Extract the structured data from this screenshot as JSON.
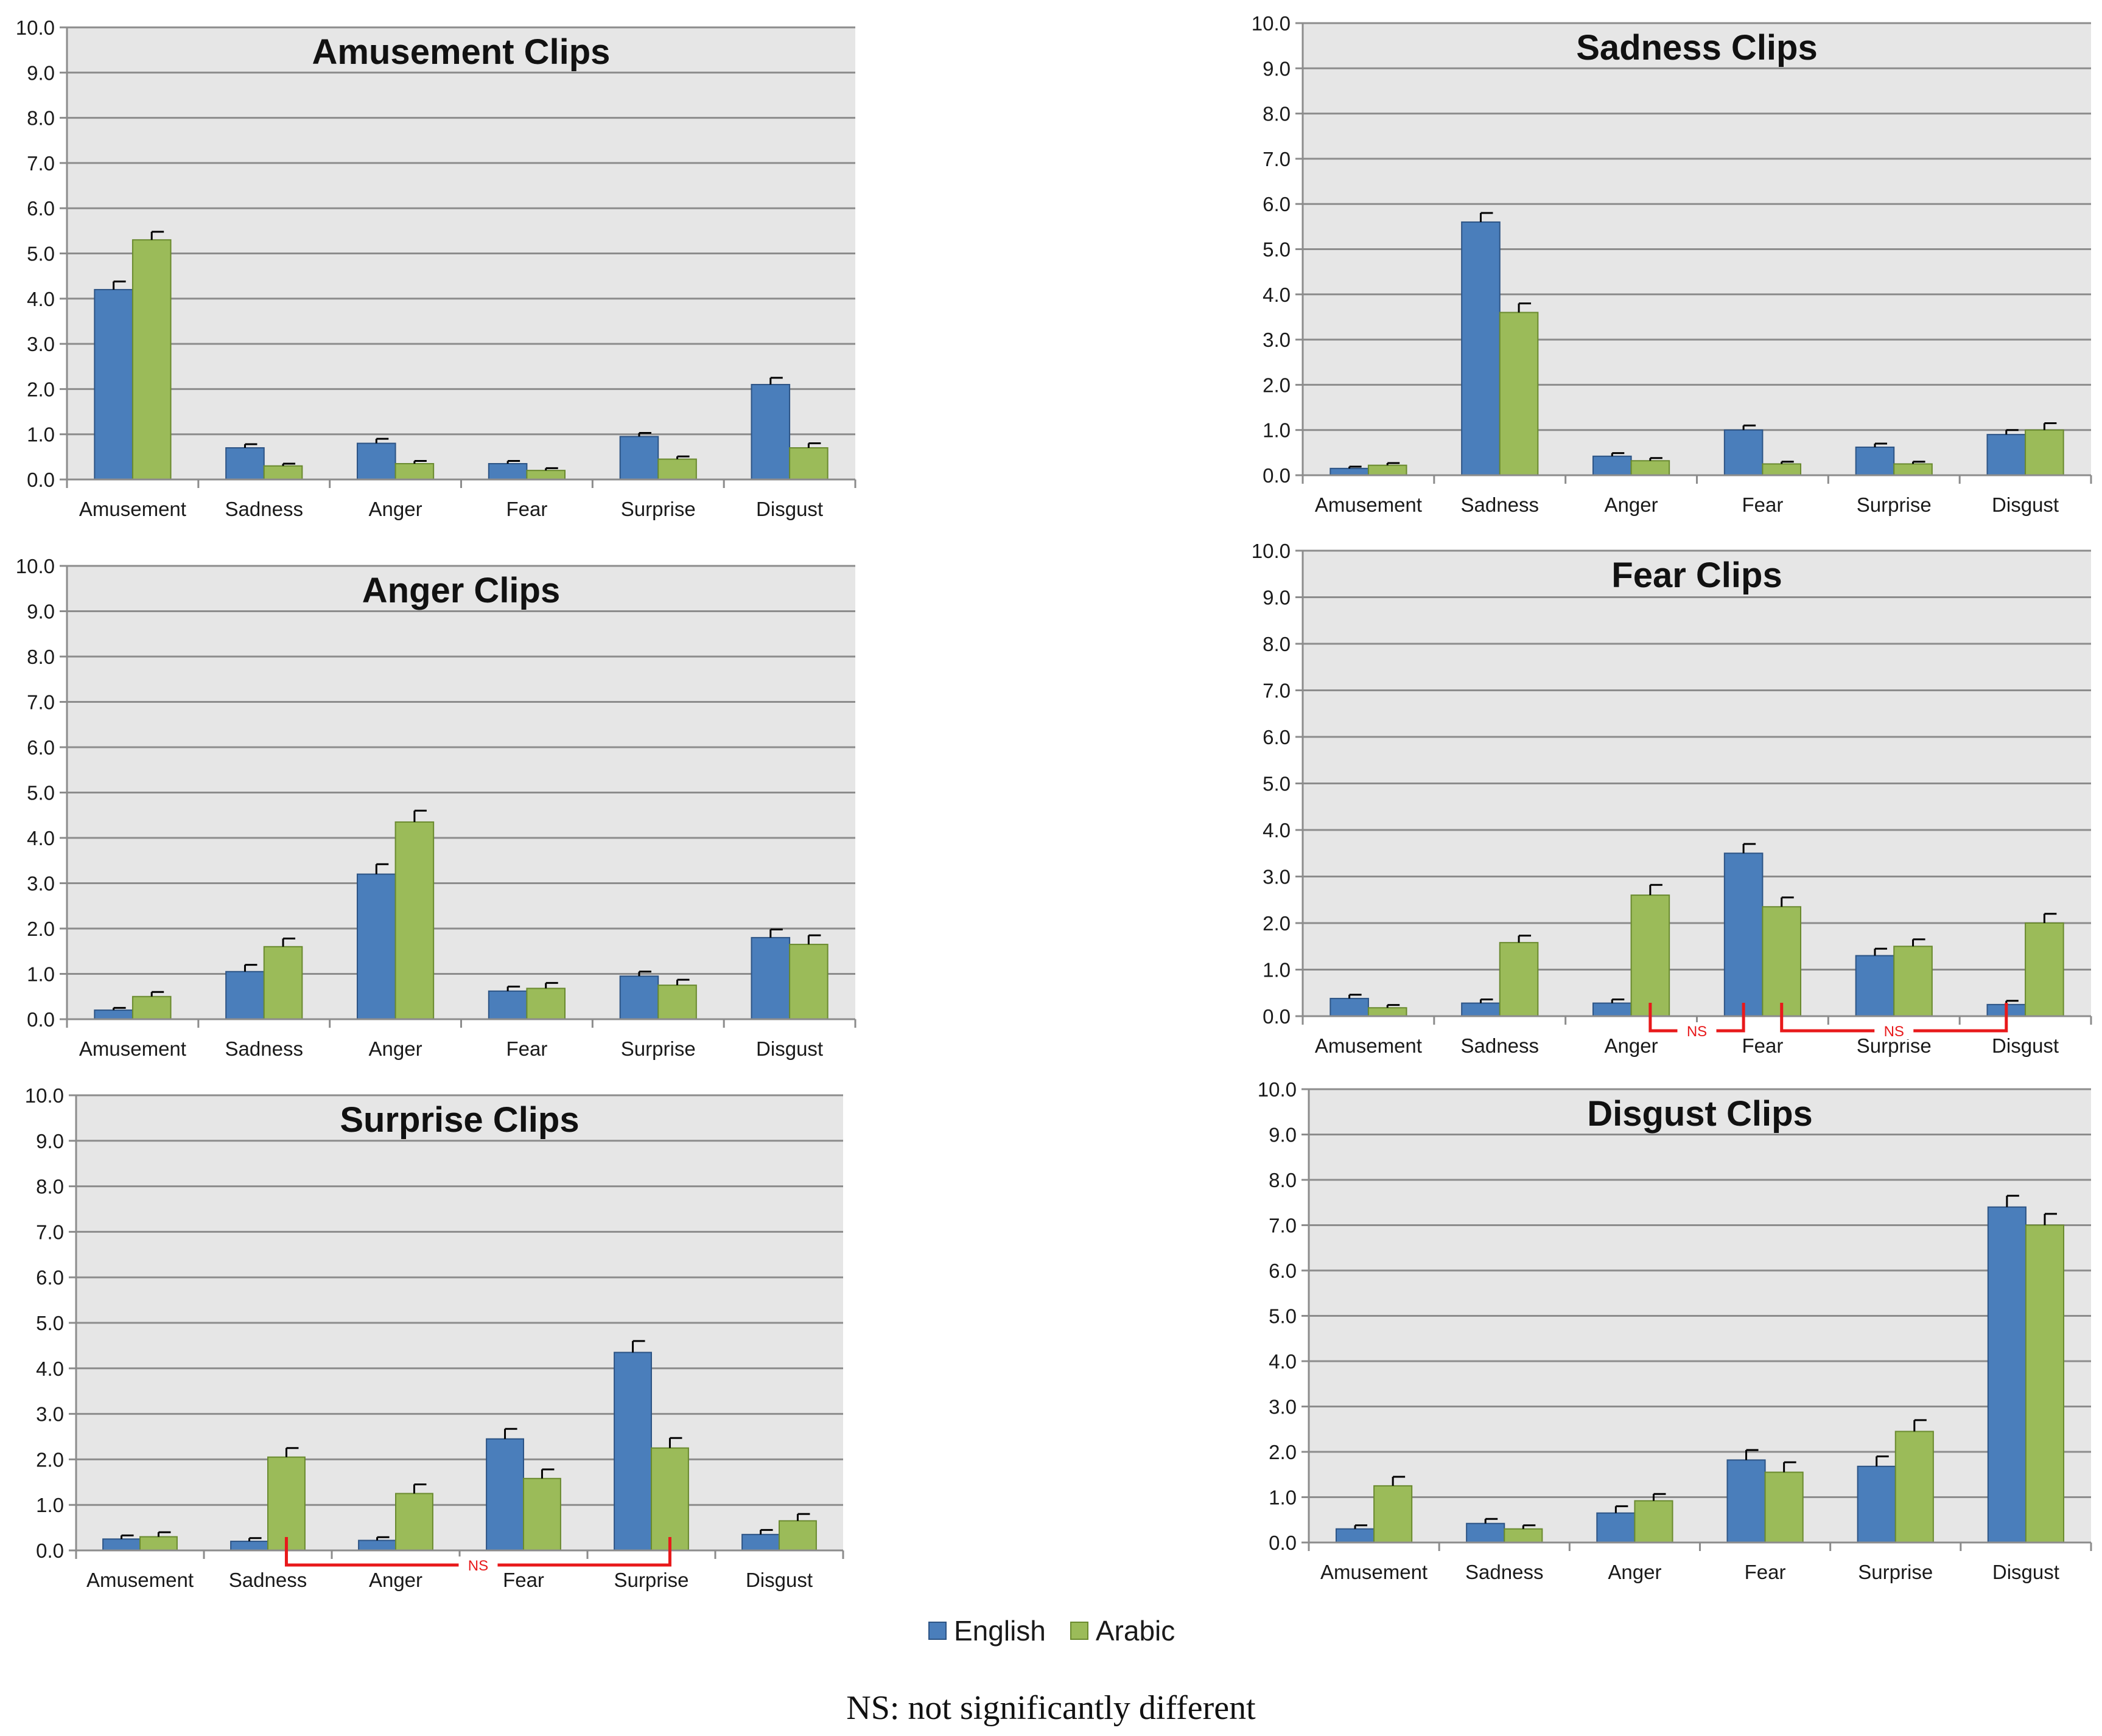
{
  "colors": {
    "english": "#4a7ebb",
    "english_edge": "#2d5485",
    "arabic": "#9bbb59",
    "arabic_edge": "#6a8a2f",
    "plot_bg": "#e6e6e6",
    "grid": "#8c8c8c",
    "ns": "#e8191b"
  },
  "legend": {
    "english": "English",
    "arabic": "Arabic"
  },
  "footnote": "NS: not significantly different",
  "chart_data": [
    {
      "type": "bar",
      "title": "Amusement Clips",
      "categories": [
        "Amusement",
        "Sadness",
        "Anger",
        "Fear",
        "Surprise",
        "Disgust"
      ],
      "series": [
        {
          "name": "English",
          "values": [
            4.2,
            0.7,
            0.8,
            0.35,
            0.95,
            2.1
          ],
          "errors": [
            0.18,
            0.08,
            0.1,
            0.06,
            0.08,
            0.15
          ]
        },
        {
          "name": "Arabic",
          "values": [
            5.3,
            0.3,
            0.35,
            0.2,
            0.45,
            0.7
          ],
          "errors": [
            0.18,
            0.05,
            0.06,
            0.05,
            0.06,
            0.1
          ]
        }
      ],
      "ylim": [
        0,
        10
      ],
      "ytick_labels": [
        "0.0",
        "1.0",
        "2.0",
        "3.0",
        "4.0",
        "5.0",
        "6.0",
        "7.0",
        "8.0",
        "9.0",
        "10.0"
      ],
      "annotations": []
    },
    {
      "type": "bar",
      "title": "Sadness Clips",
      "categories": [
        "Amusement",
        "Sadness",
        "Anger",
        "Fear",
        "Surprise",
        "Disgust"
      ],
      "series": [
        {
          "name": "English",
          "values": [
            0.15,
            5.6,
            0.42,
            1.0,
            0.62,
            0.9
          ],
          "errors": [
            0.04,
            0.2,
            0.07,
            0.1,
            0.08,
            0.1
          ]
        },
        {
          "name": "Arabic",
          "values": [
            0.22,
            3.6,
            0.32,
            0.25,
            0.25,
            1.0
          ],
          "errors": [
            0.05,
            0.2,
            0.06,
            0.05,
            0.05,
            0.15
          ]
        }
      ],
      "ylim": [
        0,
        10
      ],
      "ytick_labels": [
        "0.0",
        "1.0",
        "2.0",
        "3.0",
        "4.0",
        "5.0",
        "6.0",
        "7.0",
        "8.0",
        "9.0",
        "10.0"
      ],
      "annotations": []
    },
    {
      "type": "bar",
      "title": "Anger Clips",
      "categories": [
        "Amusement",
        "Sadness",
        "Anger",
        "Fear",
        "Surprise",
        "Disgust"
      ],
      "series": [
        {
          "name": "English",
          "values": [
            0.2,
            1.05,
            3.2,
            0.62,
            0.95,
            1.8
          ],
          "errors": [
            0.05,
            0.15,
            0.22,
            0.1,
            0.1,
            0.18
          ]
        },
        {
          "name": "Arabic",
          "values": [
            0.5,
            1.6,
            4.35,
            0.68,
            0.75,
            1.65
          ],
          "errors": [
            0.1,
            0.18,
            0.25,
            0.12,
            0.12,
            0.2
          ]
        }
      ],
      "ylim": [
        0,
        10
      ],
      "ytick_labels": [
        "0.0",
        "1.0",
        "2.0",
        "3.0",
        "4.0",
        "5.0",
        "6.0",
        "7.0",
        "8.0",
        "9.0",
        "10.0"
      ],
      "annotations": []
    },
    {
      "type": "bar",
      "title": "Fear Clips",
      "categories": [
        "Amusement",
        "Sadness",
        "Anger",
        "Fear",
        "Surprise",
        "Disgust"
      ],
      "series": [
        {
          "name": "English",
          "values": [
            0.38,
            0.28,
            0.28,
            3.5,
            1.3,
            0.25
          ],
          "errors": [
            0.08,
            0.08,
            0.08,
            0.2,
            0.15,
            0.08
          ]
        },
        {
          "name": "Arabic",
          "values": [
            0.18,
            1.58,
            2.6,
            2.35,
            1.5,
            2.0
          ],
          "errors": [
            0.06,
            0.15,
            0.22,
            0.2,
            0.15,
            0.2
          ]
        }
      ],
      "ylim": [
        0,
        10
      ],
      "ytick_labels": [
        "0.0",
        "1.0",
        "2.0",
        "3.0",
        "4.0",
        "5.0",
        "6.0",
        "7.0",
        "8.0",
        "9.0",
        "10.0"
      ],
      "annotations": [
        {
          "label": "NS",
          "from": [
            2,
            "Arabic"
          ],
          "to": [
            3,
            "English"
          ]
        },
        {
          "label": "NS",
          "from": [
            3,
            "Arabic"
          ],
          "to": [
            5,
            "English"
          ]
        }
      ]
    },
    {
      "type": "bar",
      "title": "Surprise Clips",
      "categories": [
        "Amusement",
        "Sadness",
        "Anger",
        "Fear",
        "Surprise",
        "Disgust"
      ],
      "series": [
        {
          "name": "English",
          "values": [
            0.25,
            0.2,
            0.22,
            2.45,
            4.35,
            0.35
          ],
          "errors": [
            0.08,
            0.07,
            0.07,
            0.22,
            0.25,
            0.1
          ]
        },
        {
          "name": "Arabic",
          "values": [
            0.3,
            2.05,
            1.25,
            1.58,
            2.25,
            0.65
          ],
          "errors": [
            0.1,
            0.2,
            0.2,
            0.2,
            0.22,
            0.15
          ]
        }
      ],
      "ylim": [
        0,
        10
      ],
      "ytick_labels": [
        "0.0",
        "1.0",
        "2.0",
        "3.0",
        "4.0",
        "5.0",
        "6.0",
        "7.0",
        "8.0",
        "9.0",
        "10.0"
      ],
      "annotations": [
        {
          "label": "NS",
          "from": [
            1,
            "Arabic"
          ],
          "to": [
            4,
            "Arabic"
          ]
        }
      ]
    },
    {
      "type": "bar",
      "title": "Disgust Clips",
      "categories": [
        "Amusement",
        "Sadness",
        "Anger",
        "Fear",
        "Surprise",
        "Disgust"
      ],
      "series": [
        {
          "name": "English",
          "values": [
            0.3,
            0.42,
            0.65,
            1.82,
            1.68,
            7.4
          ],
          "errors": [
            0.08,
            0.1,
            0.15,
            0.22,
            0.22,
            0.25
          ]
        },
        {
          "name": "Arabic",
          "values": [
            1.25,
            0.3,
            0.92,
            1.55,
            2.45,
            7.0
          ],
          "errors": [
            0.2,
            0.08,
            0.15,
            0.22,
            0.25,
            0.25
          ]
        }
      ],
      "ylim": [
        0,
        10
      ],
      "ytick_labels": [
        "0.0",
        "1.0",
        "2.0",
        "3.0",
        "4.0",
        "5.0",
        "6.0",
        "7.0",
        "8.0",
        "9.0",
        "10.0"
      ],
      "annotations": []
    }
  ]
}
